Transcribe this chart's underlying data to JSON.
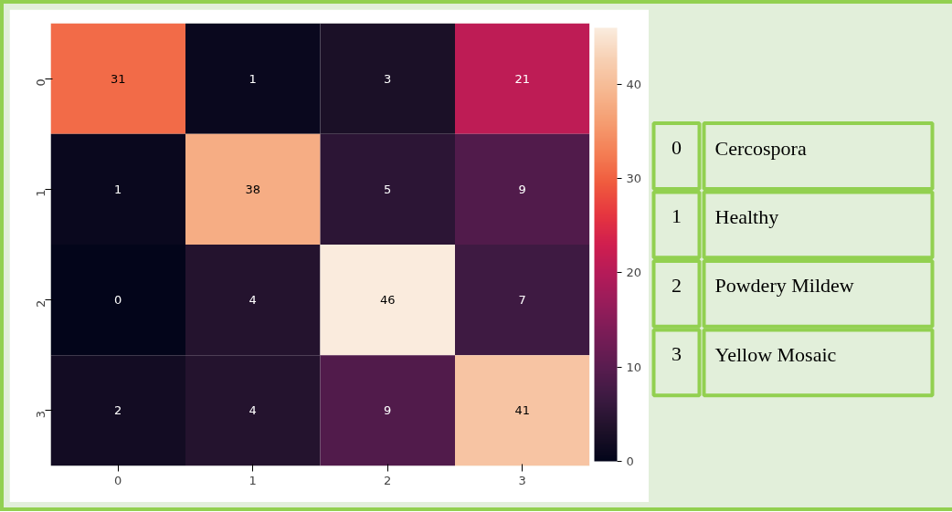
{
  "chart_data": {
    "type": "heatmap",
    "categories": [
      "0",
      "1",
      "2",
      "3"
    ],
    "y_categories": [
      "0",
      "1",
      "2",
      "3"
    ],
    "cells": [
      [
        31,
        1,
        3,
        21
      ],
      [
        1,
        38,
        5,
        9
      ],
      [
        0,
        4,
        46,
        7
      ],
      [
        2,
        4,
        9,
        41
      ]
    ],
    "data_labels": true,
    "clim": [
      0,
      46
    ],
    "cticks": [
      0,
      10,
      20,
      30,
      40
    ],
    "annotations": [
      "0",
      "Cercospora",
      "1",
      "Healthy",
      "2",
      "Powdery Mildew",
      "3",
      "Yellow Mosaic"
    ]
  }
}
